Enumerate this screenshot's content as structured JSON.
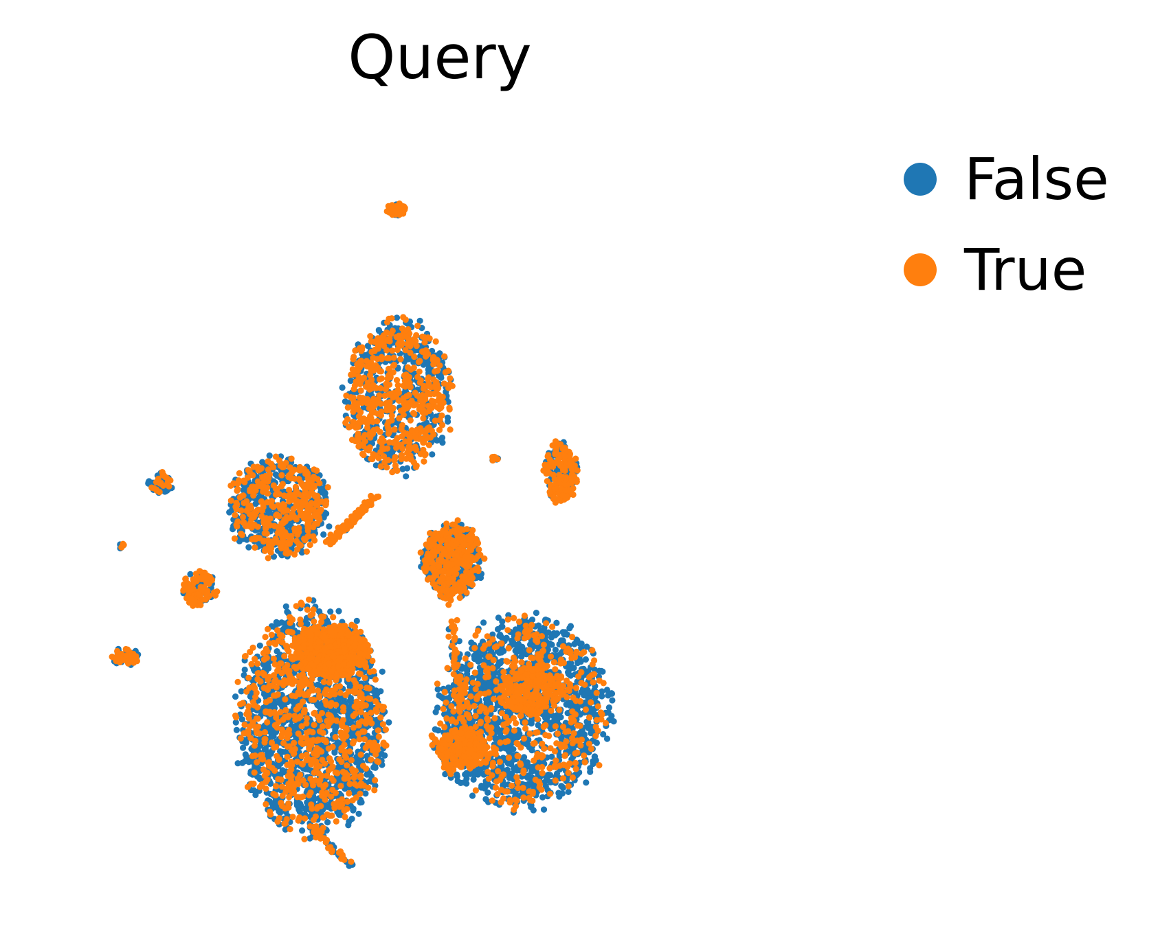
{
  "chart_data": {
    "type": "scatter",
    "title": "Query",
    "xlabel": "",
    "ylabel": "",
    "axes_visible": false,
    "grid": false,
    "legend_position": "right",
    "xlim": [
      0,
      100
    ],
    "ylim": [
      0,
      100
    ],
    "series": [
      {
        "name": "False",
        "color": "#1f77b4"
      },
      {
        "name": "True",
        "color": "#ff7f0e"
      }
    ],
    "clusters": [
      {
        "cx": 44.3,
        "cy": 91.0,
        "rx": 1.4,
        "ry": 0.9,
        "false_count": 30,
        "true_count": 30
      },
      {
        "cx": 44.5,
        "cy": 65.0,
        "rx": 7.2,
        "ry": 10.5,
        "false_count": 420,
        "true_count": 480
      },
      {
        "cx": 28.4,
        "cy": 50.0,
        "rx": 6.8,
        "ry": 6.9,
        "false_count": 420,
        "true_count": 360
      },
      {
        "cx": 12.5,
        "cy": 53.3,
        "rx": 1.8,
        "ry": 1.4,
        "false_count": 40,
        "true_count": 20
      },
      {
        "cx": 66.6,
        "cy": 54.6,
        "rx": 2.2,
        "ry": 4.3,
        "false_count": 90,
        "true_count": 140
      },
      {
        "cx": 57.7,
        "cy": 56.5,
        "rx": 0.5,
        "ry": 0.5,
        "false_count": 4,
        "true_count": 6
      },
      {
        "cx": 51.9,
        "cy": 42.5,
        "rx": 4.0,
        "ry": 5.2,
        "false_count": 260,
        "true_count": 300
      },
      {
        "cx": 17.7,
        "cy": 38.5,
        "rx": 2.4,
        "ry": 2.5,
        "false_count": 40,
        "true_count": 80
      },
      {
        "cx": 7.6,
        "cy": 29.3,
        "rx": 2.0,
        "ry": 1.3,
        "false_count": 30,
        "true_count": 30
      },
      {
        "cx": 7.1,
        "cy": 44.6,
        "rx": 0.4,
        "ry": 0.4,
        "false_count": 4,
        "true_count": 3
      },
      {
        "cx": 32.9,
        "cy": 20.5,
        "rx": 9.8,
        "ry": 15.5,
        "false_count": 1400,
        "true_count": 700
      },
      {
        "cx": 35.5,
        "cy": 30.0,
        "rx": 5.3,
        "ry": 3.5,
        "false_count": 40,
        "true_count": 480
      },
      {
        "cx": 61.5,
        "cy": 21.5,
        "rx": 11.5,
        "ry": 13.0,
        "false_count": 1300,
        "true_count": 420
      },
      {
        "cx": 62.6,
        "cy": 25.0,
        "rx": 4.0,
        "ry": 4.0,
        "false_count": 30,
        "true_count": 220
      },
      {
        "cx": 53.5,
        "cy": 16.5,
        "rx": 3.5,
        "ry": 2.8,
        "false_count": 40,
        "true_count": 180
      }
    ],
    "trails": [
      {
        "from": [
          35.0,
          45.0
        ],
        "to": [
          41.8,
          51.5
        ],
        "false_count": 10,
        "true_count": 80
      },
      {
        "from": [
          51.5,
          37.0
        ],
        "to": [
          53.4,
          18.0
        ],
        "false_count": 15,
        "true_count": 40
      },
      {
        "from": [
          33.0,
          5.5
        ],
        "to": [
          38.5,
          0.0
        ],
        "false_count": 20,
        "true_count": 20
      },
      {
        "from": [
          49.0,
          18.5
        ],
        "to": [
          52.0,
          12.5
        ],
        "false_count": 10,
        "true_count": 20
      }
    ]
  }
}
